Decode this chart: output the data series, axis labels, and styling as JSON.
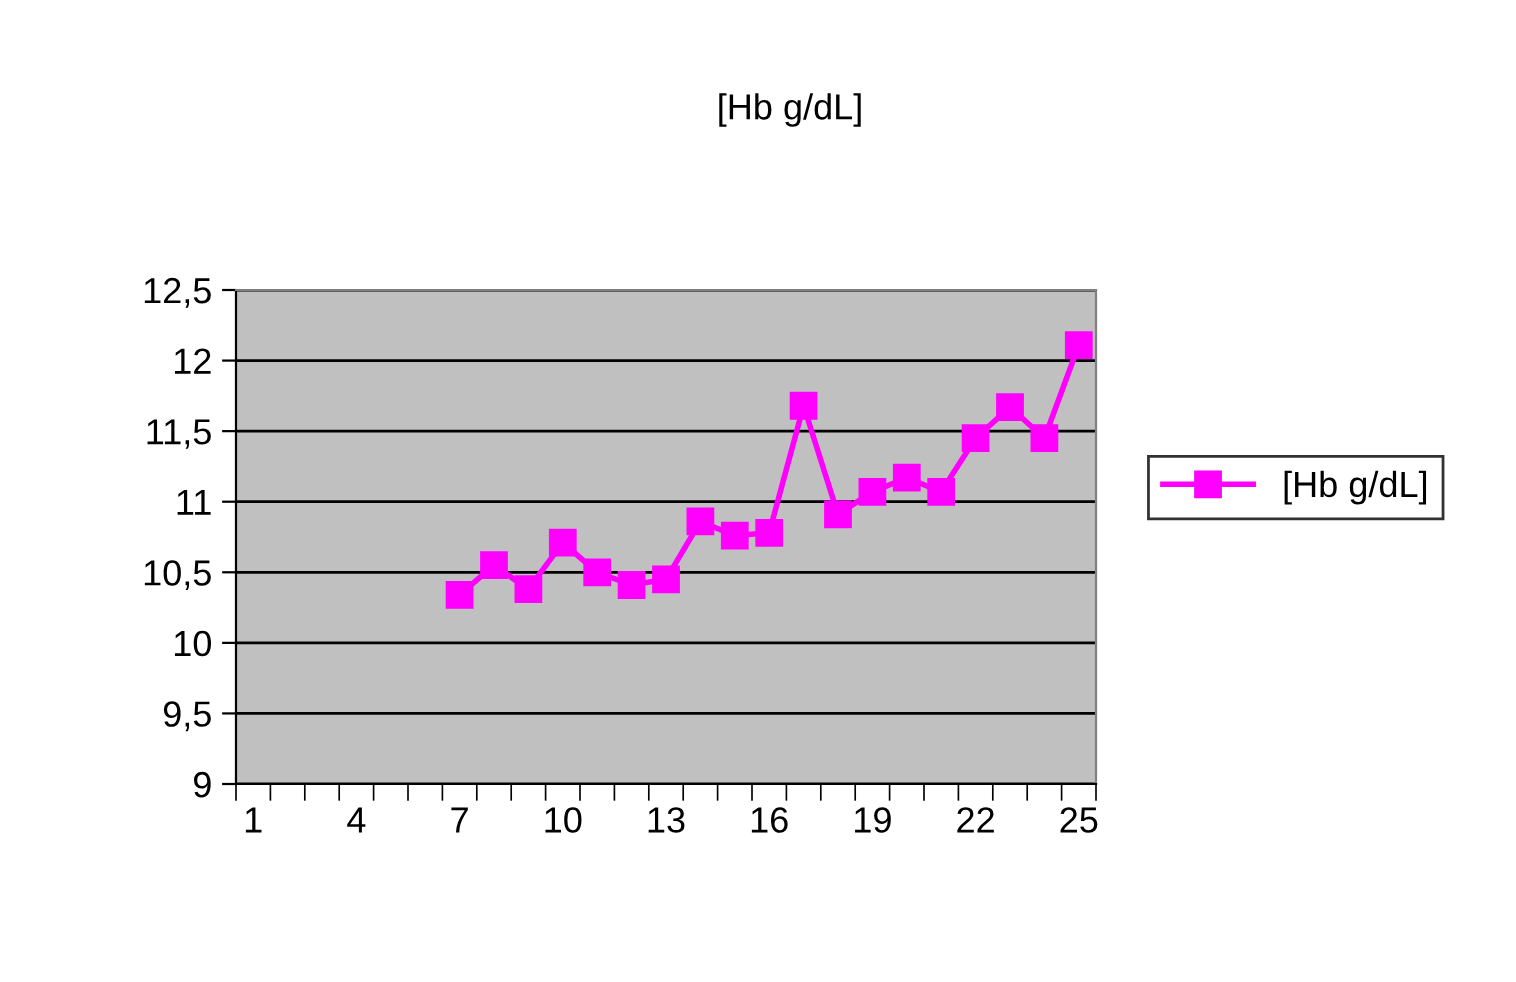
{
  "chart_data": {
    "type": "line",
    "title": "[Hb g/dL]",
    "categories": [
      "1",
      null,
      null,
      "4",
      null,
      null,
      "7",
      null,
      null,
      "10",
      null,
      null,
      "13",
      null,
      null,
      "16",
      null,
      null,
      "19",
      null,
      null,
      "22",
      null,
      null,
      "25"
    ],
    "series": [
      {
        "name": "[Hb g/dL]",
        "color": "#ff00ff",
        "values": [
          null,
          null,
          null,
          null,
          null,
          null,
          10.34,
          10.55,
          10.38,
          10.71,
          10.5,
          10.41,
          10.45,
          10.86,
          10.76,
          10.78,
          11.68,
          10.91,
          11.07,
          11.17,
          11.07,
          11.45,
          11.67,
          11.45,
          12.11
        ]
      }
    ],
    "ylim": [
      9,
      12.5
    ],
    "yticks": [
      9,
      {
        "value": 9.5,
        "label": "9,5"
      },
      10,
      {
        "value": 10.5,
        "label": "10,5"
      },
      11,
      {
        "value": 11.5,
        "label": "11,5"
      },
      12,
      {
        "value": 12.5,
        "label": "12,5"
      }
    ],
    "grid": "y",
    "legend": "right",
    "marker": "square",
    "line_style": "solid"
  }
}
